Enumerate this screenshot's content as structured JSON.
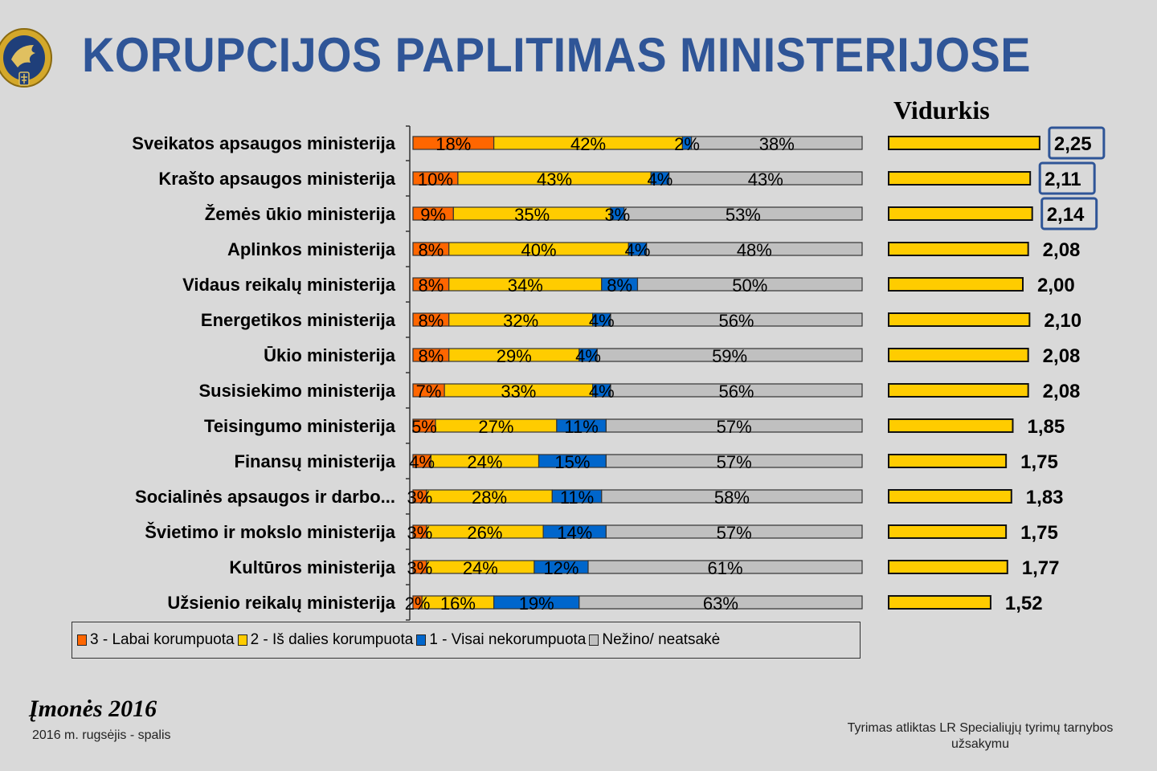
{
  "header": {
    "title": "KORUPCIJOS PAPLITIMAS MINISTERIJOSE",
    "logo_icon": "special-investigation-service-emblem"
  },
  "avg_header": "Vidurkis",
  "colors": {
    "very_corrupt": "#ff6600",
    "partly_corrupt": "#ffcc00",
    "not_corrupt": "#0066cc",
    "dont_know": "#c0c0c0",
    "title": "#2f5597",
    "highlight_box": "#2f5597",
    "avg_bar": "#ffcc00"
  },
  "chart_data": {
    "type": "bar",
    "orientation": "horizontal",
    "stacked": true,
    "percent_stacked": true,
    "title": "KORUPCIJOS PAPLITIMAS MINISTERIJOSE",
    "xlabel": "",
    "ylabel": "",
    "xlim": [
      0,
      100
    ],
    "grid": false,
    "legend_position": "bottom",
    "categories": [
      "Sveikatos apsaugos ministerija",
      "Krašto apsaugos ministerija",
      "Žemės ūkio ministerija",
      "Aplinkos ministerija",
      "Vidaus reikalų ministerija",
      "Energetikos ministerija",
      "Ūkio ministerija",
      "Susisiekimo ministerija",
      "Teisingumo ministerija",
      "Finansų ministerija",
      "Socialinės apsaugos ir darbo...",
      "Švietimo ir mokslo ministerija",
      "Kultūros ministerija",
      "Užsienio reikalų ministerija"
    ],
    "series": [
      {
        "name": "3 - Labai korumpuota",
        "color_key": "very_corrupt",
        "values": [
          18,
          10,
          9,
          8,
          8,
          8,
          8,
          7,
          5,
          4,
          3,
          3,
          3,
          2
        ]
      },
      {
        "name": "2 - Iš dalies korumpuota",
        "color_key": "partly_corrupt",
        "values": [
          42,
          43,
          35,
          40,
          34,
          32,
          29,
          33,
          27,
          24,
          28,
          26,
          24,
          16
        ]
      },
      {
        "name": "1 - Visai nekorumpuota",
        "color_key": "not_corrupt",
        "values": [
          2,
          4,
          3,
          4,
          8,
          4,
          4,
          4,
          11,
          15,
          11,
          14,
          12,
          19
        ]
      },
      {
        "name": "Nežino/ neatsakė",
        "color_key": "dont_know",
        "values": [
          38,
          43,
          53,
          48,
          50,
          56,
          59,
          56,
          57,
          57,
          58,
          57,
          61,
          63
        ]
      }
    ],
    "value_format": "percent",
    "averages": {
      "label": "Vidurkis",
      "values": [
        2.25,
        2.11,
        2.14,
        2.08,
        2.0,
        2.1,
        2.08,
        2.08,
        1.85,
        1.75,
        1.83,
        1.75,
        1.77,
        1.52
      ],
      "display": [
        "2,25",
        "2,11",
        "2,14",
        "2,08",
        "2,00",
        "2,10",
        "2,08",
        "2,08",
        "1,85",
        "1,75",
        "1,83",
        "1,75",
        "1,77",
        "1,52"
      ],
      "highlighted": [
        true,
        true,
        true,
        false,
        false,
        false,
        false,
        false,
        false,
        false,
        false,
        false,
        false,
        false
      ]
    }
  },
  "legend": [
    {
      "label": "3 - Labai korumpuota",
      "color_key": "very_corrupt"
    },
    {
      "label": "2 - Iš dalies korumpuota",
      "color_key": "partly_corrupt"
    },
    {
      "label": "1 - Visai nekorumpuota",
      "color_key": "not_corrupt"
    },
    {
      "label": "Nežino/ neatsakė",
      "color_key": "dont_know"
    }
  ],
  "footer": {
    "source_title": "Įmonės 2016",
    "source_date": "2016 m. rugsėjis - spalis",
    "credit": "Tyrimas atliktas LR Specialiųjų tyrimų tarnybos užsakymu"
  }
}
